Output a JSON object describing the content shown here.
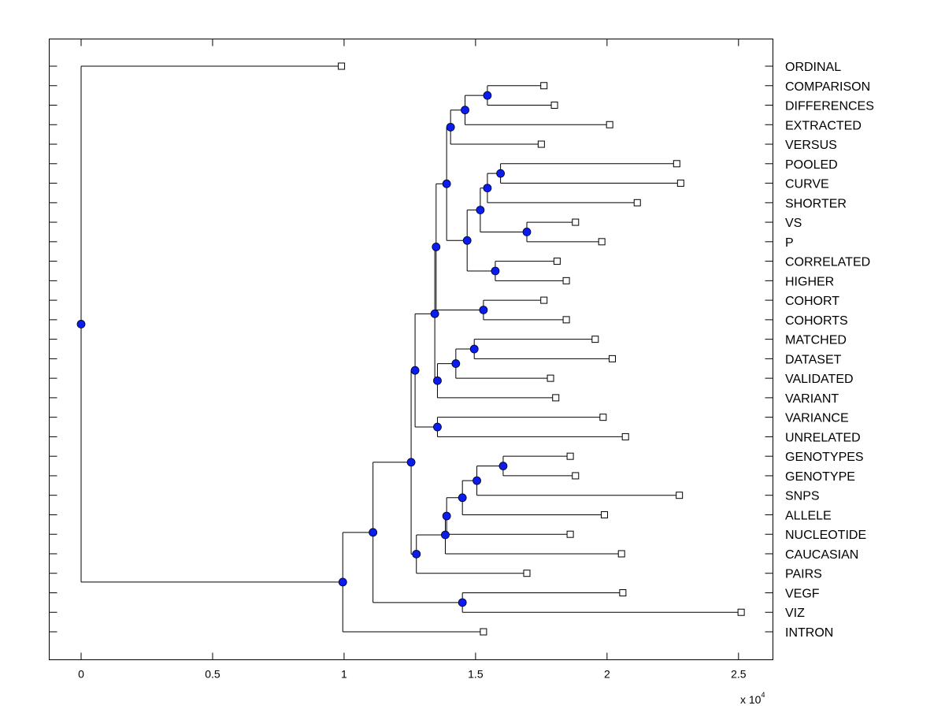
{
  "chart_data": {
    "type": "dendrogram",
    "x_multiplier": {
      "base": "x 10",
      "exponent": "4"
    },
    "xlim": [
      -0.125,
      2.625
    ],
    "xticks": [
      0,
      0.5,
      1,
      1.5,
      2,
      2.5
    ],
    "xtick_labels": [
      "0",
      "0.5",
      "1",
      "1.5",
      "2",
      "2.5"
    ],
    "grid": false,
    "leaves": [
      {
        "label": "ORDINAL",
        "x": 0.99
      },
      {
        "label": "COMPARISON",
        "x": 1.76
      },
      {
        "label": "DIFFERENCES",
        "x": 1.8
      },
      {
        "label": "EXTRACTED",
        "x": 2.01
      },
      {
        "label": "VERSUS",
        "x": 1.75
      },
      {
        "label": "POOLED",
        "x": 2.265
      },
      {
        "label": "CURVE",
        "x": 2.28
      },
      {
        "label": "SHORTER",
        "x": 2.115
      },
      {
        "label": "VS",
        "x": 1.88
      },
      {
        "label": "P",
        "x": 1.98
      },
      {
        "label": "CORRELATED",
        "x": 1.81
      },
      {
        "label": "HIGHER",
        "x": 1.845
      },
      {
        "label": "COHORT",
        "x": 1.76
      },
      {
        "label": "COHORTS",
        "x": 1.845
      },
      {
        "label": "MATCHED",
        "x": 1.955
      },
      {
        "label": "DATASET",
        "x": 2.02
      },
      {
        "label": "VALIDATED",
        "x": 1.785
      },
      {
        "label": "VARIANT",
        "x": 1.805
      },
      {
        "label": "VARIANCE",
        "x": 1.985
      },
      {
        "label": "UNRELATED",
        "x": 2.07
      },
      {
        "label": "GENOTYPES",
        "x": 1.86
      },
      {
        "label": "GENOTYPE",
        "x": 1.88
      },
      {
        "label": "SNPS",
        "x": 2.275
      },
      {
        "label": "ALLELE",
        "x": 1.99
      },
      {
        "label": "NUCLEOTIDE",
        "x": 1.86
      },
      {
        "label": "CAUCASIAN",
        "x": 2.055
      },
      {
        "label": "PAIRS",
        "x": 1.695
      },
      {
        "label": "VEGF",
        "x": 2.06
      },
      {
        "label": "VIZ",
        "x": 2.51
      },
      {
        "label": "INTRON",
        "x": 1.53
      }
    ],
    "merges": [
      {
        "x": 0.0,
        "children": [
          0,
          "m28"
        ],
        "id": "root"
      },
      {
        "x": 0.995,
        "children": [
          "m27",
          29
        ],
        "id": "m28"
      },
      {
        "x": 1.11,
        "children": [
          "m26",
          "m25"
        ],
        "id": "m27"
      },
      {
        "x": 1.45,
        "children": [
          27,
          28
        ],
        "id": "m25"
      },
      {
        "x": 1.255,
        "children": [
          "m24",
          "m23"
        ],
        "id": "m26"
      },
      {
        "x": 1.275,
        "children": [
          "m22",
          26
        ],
        "id": "m23"
      },
      {
        "x": 1.385,
        "children": [
          "m21",
          25
        ],
        "id": "m22"
      },
      {
        "x": 1.39,
        "children": [
          "m20",
          24
        ],
        "id": "m21"
      },
      {
        "x": 1.45,
        "children": [
          "m19",
          23
        ],
        "id": "m20"
      },
      {
        "x": 1.505,
        "children": [
          "m18",
          22
        ],
        "id": "m19"
      },
      {
        "x": 1.605,
        "children": [
          20,
          21
        ],
        "id": "m18"
      },
      {
        "x": 1.27,
        "children": [
          "m17",
          "m16"
        ],
        "id": "m24"
      },
      {
        "x": 1.355,
        "children": [
          18,
          19
        ],
        "id": "m16"
      },
      {
        "x": 1.345,
        "children": [
          "m15",
          "m14"
        ],
        "id": "m17"
      },
      {
        "x": 1.355,
        "children": [
          "m13",
          17
        ],
        "id": "m14"
      },
      {
        "x": 1.425,
        "children": [
          "m12",
          16
        ],
        "id": "m13"
      },
      {
        "x": 1.495,
        "children": [
          14,
          15
        ],
        "id": "m12"
      },
      {
        "x": 1.35,
        "children": [
          "m11",
          "m10"
        ],
        "id": "m15"
      },
      {
        "x": 1.53,
        "children": [
          12,
          13
        ],
        "id": "m10"
      },
      {
        "x": 1.39,
        "children": [
          "m9",
          "m8"
        ],
        "id": "m11"
      },
      {
        "x": 1.468,
        "children": [
          "m7",
          "m6"
        ],
        "id": "m8"
      },
      {
        "x": 1.575,
        "children": [
          10,
          11
        ],
        "id": "m6"
      },
      {
        "x": 1.518,
        "children": [
          "m5",
          "m4"
        ],
        "id": "m7"
      },
      {
        "x": 1.695,
        "children": [
          8,
          9
        ],
        "id": "m4"
      },
      {
        "x": 1.545,
        "children": [
          "m3",
          7
        ],
        "id": "m5"
      },
      {
        "x": 1.595,
        "children": [
          5,
          6
        ],
        "id": "m3"
      },
      {
        "x": 1.405,
        "children": [
          "m2",
          4
        ],
        "id": "m9"
      },
      {
        "x": 1.46,
        "children": [
          "m1",
          3
        ],
        "id": "m2"
      },
      {
        "x": 1.545,
        "children": [
          1,
          2
        ],
        "id": "m1"
      }
    ]
  }
}
